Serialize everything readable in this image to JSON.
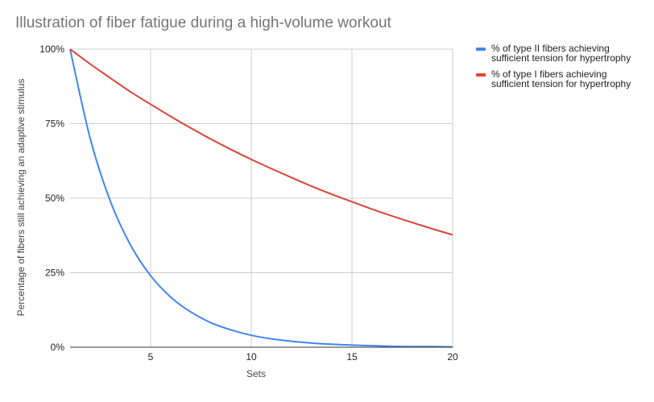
{
  "chart_data": {
    "type": "line",
    "title": "Illustration of fiber fatigue during a high-volume workout",
    "xlabel": "Sets",
    "ylabel": "Percentage of fibers still achieving an adaptive stimulus",
    "xlim": [
      1,
      20
    ],
    "ylim": [
      0,
      100
    ],
    "x_ticks": [
      5,
      10,
      15,
      20
    ],
    "y_ticks": [
      "0%",
      "25%",
      "50%",
      "75%",
      "100%"
    ],
    "y_tick_values": [
      0,
      25,
      50,
      75,
      100
    ],
    "grid": true,
    "legend_position": "right",
    "x": [
      1,
      2,
      3,
      4,
      5,
      6,
      7,
      8,
      9,
      10,
      11,
      12,
      13,
      14,
      15,
      16,
      17,
      18,
      19,
      20
    ],
    "series": [
      {
        "name": "% of type II fibers achieving sufficient tension for hypertrophy",
        "color": "#4285f4",
        "values": [
          100,
          70,
          49,
          34.3,
          24,
          16.8,
          11.8,
          8.2,
          5.8,
          4,
          2.8,
          2,
          1.4,
          1,
          0.7,
          0.5,
          0.3,
          0.2,
          0.2,
          0.1
        ]
      },
      {
        "name": "% of type I fibers achieving sufficient tension for hypertrophy",
        "color": "#db4437",
        "values": [
          100,
          95,
          90.3,
          85.7,
          81.5,
          77.4,
          73.5,
          69.8,
          66.3,
          63,
          59.9,
          56.9,
          54,
          51.3,
          48.8,
          46.3,
          44,
          41.8,
          39.7,
          37.7
        ]
      }
    ]
  }
}
